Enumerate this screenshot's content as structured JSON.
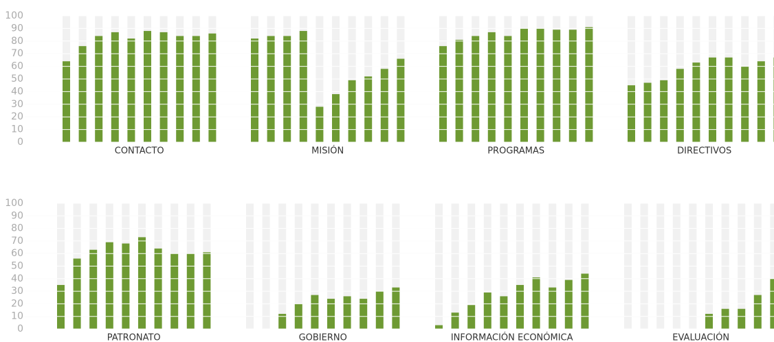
{
  "chart_data": {
    "type": "bar",
    "color": "#6e9a33",
    "ylim": [
      0,
      100
    ],
    "yticks": [
      0,
      10,
      20,
      30,
      40,
      50,
      60,
      70,
      80,
      90,
      100
    ],
    "grid": true,
    "panels": [
      {
        "title": "CONTACTO",
        "values": [
          64,
          76,
          84,
          87,
          82,
          88,
          87,
          84,
          84,
          86
        ]
      },
      {
        "title": "MISIÓN",
        "values": [
          82,
          84,
          84,
          88,
          28,
          38,
          49,
          52,
          58,
          66
        ]
      },
      {
        "title": "PROGRAMAS",
        "values": [
          76,
          81,
          84,
          87,
          84,
          90,
          90,
          89,
          89,
          91
        ]
      },
      {
        "title": "DIRECTIVOS",
        "values": [
          45,
          47,
          49,
          58,
          63,
          67,
          67,
          60,
          64,
          67
        ]
      },
      {
        "title": "PATRONATO",
        "values": [
          35,
          56,
          63,
          69,
          68,
          73,
          64,
          60,
          60,
          61
        ]
      },
      {
        "title": "GOBIERNO",
        "values": [
          null,
          null,
          12,
          20,
          27,
          24,
          26,
          24,
          30,
          33
        ]
      },
      {
        "title": "INFORMACIÓN ECONÓMICA",
        "values": [
          3,
          13,
          19,
          29,
          26,
          35,
          41,
          33,
          39,
          44
        ]
      },
      {
        "title": "EVALUACIÓN",
        "values": [
          null,
          null,
          null,
          null,
          null,
          12,
          16,
          16,
          27,
          40
        ]
      }
    ]
  }
}
